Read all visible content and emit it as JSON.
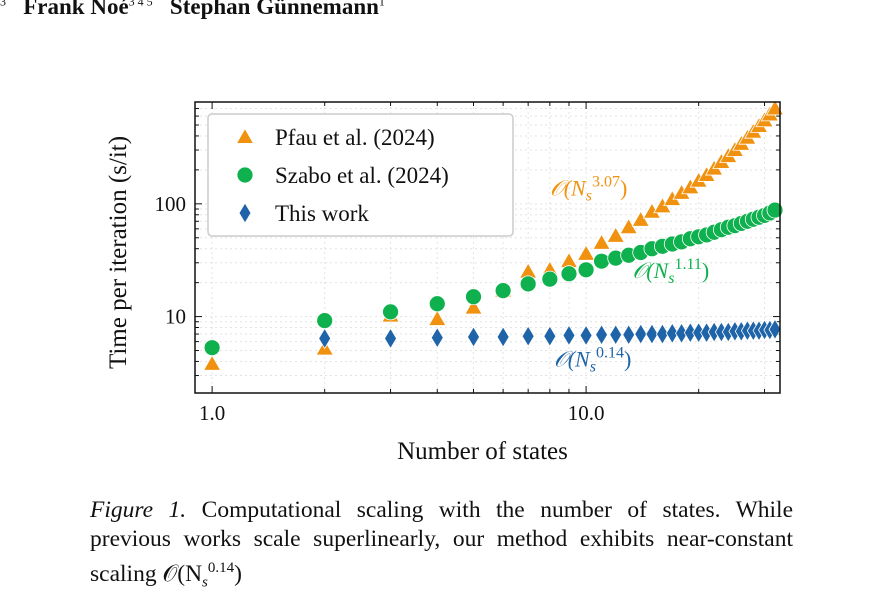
{
  "header": {
    "superscript_left": "3",
    "author_1": "Frank Noé",
    "author_1_sup": "3 4 5",
    "author_2": "Stephan Günnemann",
    "author_2_sup": "1"
  },
  "caption": {
    "label": "Figure 1.",
    "text": "Computational scaling with the number of states. While previous works scale superlinearly, our method exhibits near-constant scaling 𝒪(N",
    "exponent": "0.14"
  },
  "chart_data": {
    "type": "scatter",
    "xscale": "log",
    "yscale": "log",
    "xlim": [
      0.9,
      33
    ],
    "ylim": [
      2.1,
      800
    ],
    "grid": true,
    "legend_position": "top-left",
    "xlabel": "Number of states",
    "ylabel": "Time per iteration (s/it)",
    "x_ticks": [
      {
        "value": 1,
        "label": "1.0"
      },
      {
        "value": 10,
        "label": "10.0"
      }
    ],
    "y_ticks": [
      {
        "value": 10,
        "label": "10"
      },
      {
        "value": 100,
        "label": "100"
      }
    ],
    "series": [
      {
        "name": "Pfau et al. (2024)",
        "color": "#f0920f",
        "marker": "triangle",
        "x": [
          1,
          2,
          3,
          4,
          5,
          6,
          7,
          8,
          9,
          10,
          11,
          12,
          13,
          14,
          15,
          16,
          17,
          18,
          19,
          20,
          21,
          22,
          23,
          24,
          25,
          26,
          27,
          28,
          29,
          30,
          31,
          32
        ],
        "y": [
          3.8,
          5.2,
          10.2,
          9.5,
          12,
          17,
          25,
          26,
          31,
          36,
          45,
          52,
          62,
          72,
          85,
          95,
          110,
          125,
          140,
          160,
          180,
          205,
          235,
          265,
          300,
          340,
          385,
          435,
          490,
          550,
          620,
          700
        ]
      },
      {
        "name": "Szabo et al. (2024)",
        "color": "#0eb14e",
        "marker": "circle",
        "x": [
          1,
          2,
          3,
          4,
          5,
          6,
          7,
          8,
          9,
          10,
          11,
          12,
          13,
          14,
          15,
          16,
          17,
          18,
          19,
          20,
          21,
          22,
          23,
          24,
          25,
          26,
          27,
          28,
          29,
          30,
          31,
          32
        ],
        "y": [
          5.3,
          9.2,
          11,
          13,
          15,
          17,
          19.5,
          21.5,
          24,
          26,
          31,
          33,
          35,
          37,
          40,
          42,
          44,
          46,
          49,
          51,
          53,
          56,
          59,
          62,
          64,
          67,
          70,
          73,
          76,
          79,
          83,
          88
        ]
      },
      {
        "name": "This work",
        "color": "#1f64a8",
        "marker": "diamond",
        "x": [
          2,
          3,
          4,
          5,
          6,
          7,
          8,
          9,
          10,
          11,
          12,
          13,
          14,
          15,
          16,
          17,
          18,
          19,
          20,
          21,
          22,
          23,
          24,
          25,
          26,
          27,
          28,
          29,
          30,
          31,
          32
        ],
        "y": [
          6.4,
          6.4,
          6.5,
          6.6,
          6.6,
          6.7,
          6.7,
          6.8,
          6.8,
          6.9,
          6.9,
          6.9,
          7.0,
          7.0,
          7.0,
          7.1,
          7.1,
          7.2,
          7.2,
          7.2,
          7.3,
          7.3,
          7.3,
          7.4,
          7.4,
          7.5,
          7.5,
          7.5,
          7.6,
          7.6,
          7.7
        ]
      }
    ],
    "annotations": [
      {
        "base": "𝒪(N",
        "sub": "s",
        "exp": "3.07",
        "close": ")",
        "color": "#f0920f",
        "x": 8.0,
        "y": 118
      },
      {
        "base": "𝒪(N",
        "sub": "s",
        "exp": "1.11",
        "close": ")",
        "color": "#0eb14e",
        "x": 13.3,
        "y": 22
      },
      {
        "base": "𝒪(N",
        "sub": "s",
        "exp": "0.14",
        "close": ")",
        "color": "#1f64a8",
        "x": 8.2,
        "y": 3.6
      }
    ]
  }
}
